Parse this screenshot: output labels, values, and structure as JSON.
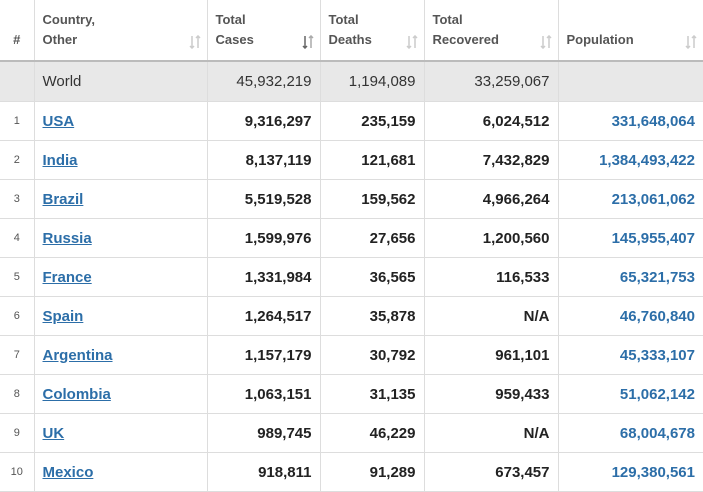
{
  "table": {
    "headers": [
      {
        "lines": [
          "#"
        ]
      },
      {
        "lines": [
          "Country,",
          "Other"
        ]
      },
      {
        "lines": [
          "Total",
          "Cases"
        ]
      },
      {
        "lines": [
          "Total",
          "Deaths"
        ]
      },
      {
        "lines": [
          "Total",
          "Recovered"
        ]
      },
      {
        "lines": [
          "Population"
        ]
      }
    ],
    "world": {
      "country": "World",
      "cases": "45,932,219",
      "deaths": "1,194,089",
      "recovered": "33,259,067"
    },
    "rows": [
      {
        "rank": "1",
        "country": "USA",
        "cases": "9,316,297",
        "deaths": "235,159",
        "recovered": "6,024,512",
        "population": "331,648,064"
      },
      {
        "rank": "2",
        "country": "India",
        "cases": "8,137,119",
        "deaths": "121,681",
        "recovered": "7,432,829",
        "population": "1,384,493,422"
      },
      {
        "rank": "3",
        "country": "Brazil",
        "cases": "5,519,528",
        "deaths": "159,562",
        "recovered": "4,966,264",
        "population": "213,061,062"
      },
      {
        "rank": "4",
        "country": "Russia",
        "cases": "1,599,976",
        "deaths": "27,656",
        "recovered": "1,200,560",
        "population": "145,955,407"
      },
      {
        "rank": "5",
        "country": "France",
        "cases": "1,331,984",
        "deaths": "36,565",
        "recovered": "116,533",
        "population": "65,321,753"
      },
      {
        "rank": "6",
        "country": "Spain",
        "cases": "1,264,517",
        "deaths": "35,878",
        "recovered": "N/A",
        "population": "46,760,840"
      },
      {
        "rank": "7",
        "country": "Argentina",
        "cases": "1,157,179",
        "deaths": "30,792",
        "recovered": "961,101",
        "population": "45,333,107"
      },
      {
        "rank": "8",
        "country": "Colombia",
        "cases": "1,063,151",
        "deaths": "31,135",
        "recovered": "959,433",
        "population": "51,062,142"
      },
      {
        "rank": "9",
        "country": "UK",
        "cases": "989,745",
        "deaths": "46,229",
        "recovered": "N/A",
        "population": "68,004,678"
      },
      {
        "rank": "10",
        "country": "Mexico",
        "cases": "918,811",
        "deaths": "91,289",
        "recovered": "673,457",
        "population": "129,380,561"
      }
    ]
  }
}
